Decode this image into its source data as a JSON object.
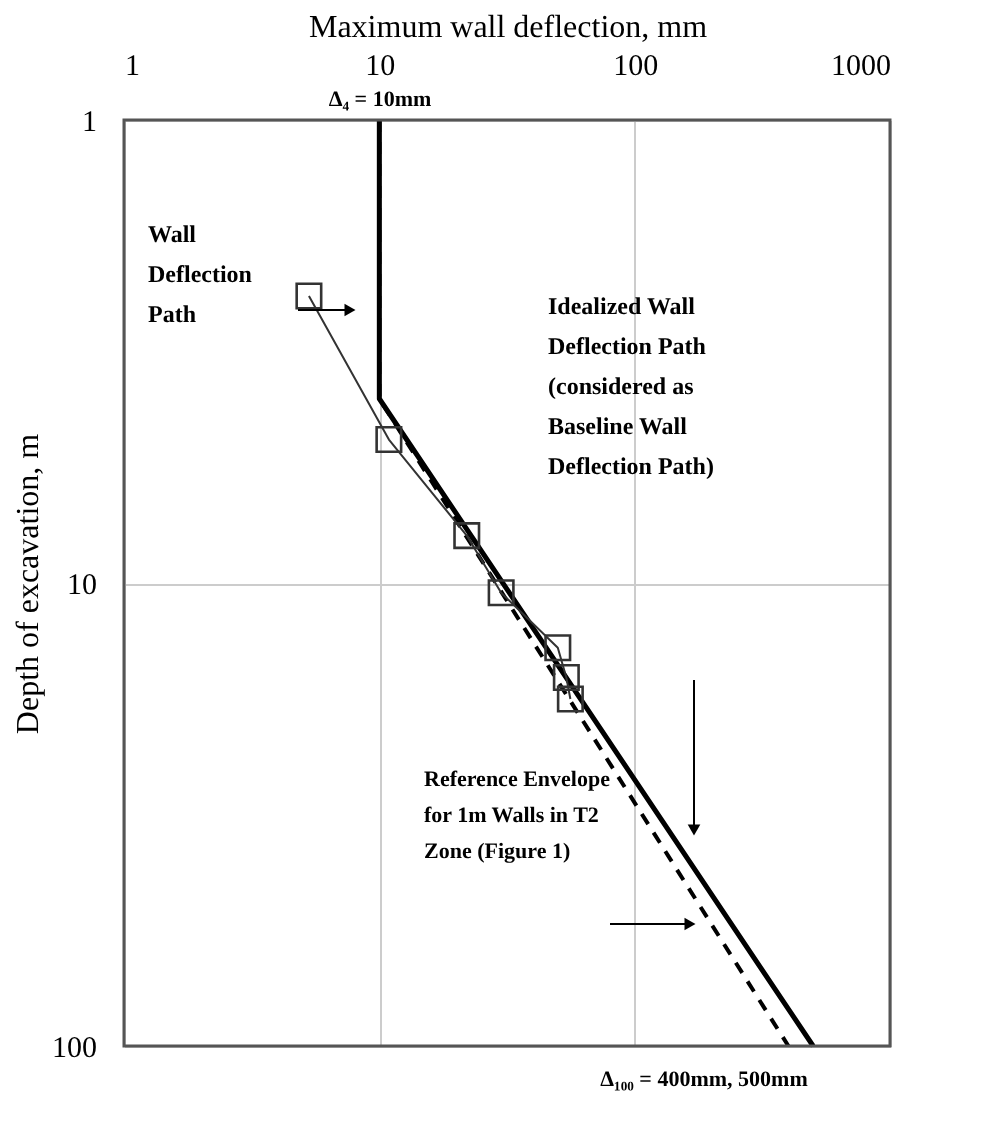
{
  "chart_data": {
    "type": "line",
    "xlabel": "Maximum wall deflection, mm",
    "ylabel": "Depth of excavation, m",
    "xlim": [
      1,
      1000
    ],
    "xticks": [
      1,
      10,
      100,
      1000
    ],
    "ylim": [
      100,
      1
    ],
    "yticks": [
      1,
      10,
      100
    ],
    "log": "xy",
    "grid": true,
    "series": [
      {
        "color": "#000000",
        "line_style": "solid",
        "marker": "none",
        "x": [
          10,
          10,
          500
        ],
        "values": [
          1,
          4,
          100
        ]
      },
      {
        "color": "#000000",
        "line_style": "dashed",
        "marker": "none",
        "x": [
          10,
          10,
          400
        ],
        "values": [
          1,
          4,
          100
        ]
      },
      {
        "color": "#333333",
        "line_style": "solid",
        "marker": "square",
        "x": [
          5.3,
          10.9,
          22,
          30,
          50,
          54,
          56
        ],
        "values": [
          2.4,
          4.9,
          7.9,
          10.5,
          13.8,
          16,
          17.8
        ]
      }
    ],
    "annotations": [
      "Δ₄ = 10mm",
      "Δ₁₀₀ = 400mm, 500mm",
      "Wall Deflection Path",
      "Idealized Wall Deflection Path (considered as Baseline Wall Deflection Path)",
      "Reference Envelope for 1m Walls in T2 Zone (Figure 1)"
    ]
  }
}
